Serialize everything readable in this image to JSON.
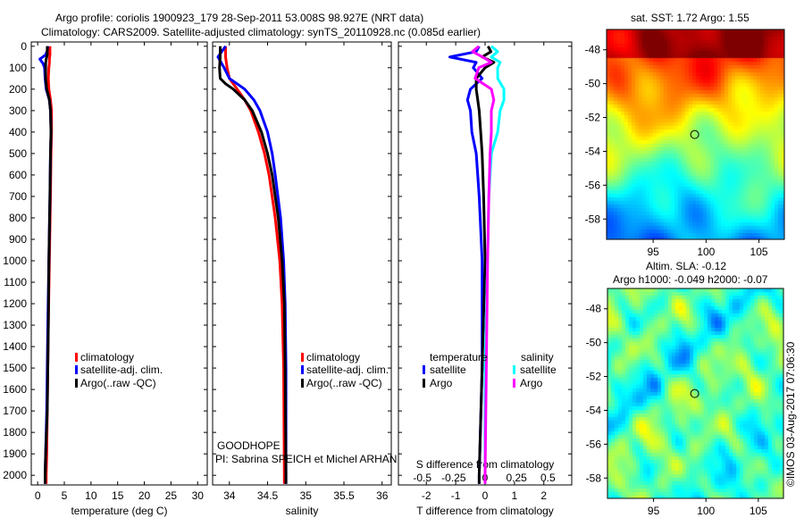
{
  "header": {
    "line1": "Argo profile: coriolis 1900923_179 28-Sep-2011 53.008S 98.927E (NRT data)",
    "line2": "Climatology: CARS2009. Satellite-adjusted climatology: synTS_20110928.nc (0.085d earlier)"
  },
  "colors": {
    "climatology": "#ff0000",
    "satellite": "#0000ff",
    "argo": "#000000",
    "s_satellite": "#00ffff",
    "s_argo": "#ff00ff"
  },
  "credits": {
    "project": "GOODHOPE",
    "pi": "PI: Sabrina SPEICH et Michel ARHAN",
    "stamp": "©IMOS 03-Aug-2017 07:06:30"
  },
  "chart_data": [
    {
      "type": "line",
      "id": "temperature",
      "xlabel": "temperature (deg C)",
      "ylabel": "depth",
      "xlim": [
        -1.2,
        31.8
      ],
      "ylim": [
        2045,
        -20
      ],
      "xticks": [
        0,
        5,
        10,
        15,
        20,
        25,
        30
      ],
      "yticks": [
        0,
        100,
        200,
        300,
        400,
        500,
        600,
        700,
        800,
        900,
        1000,
        1100,
        1200,
        1300,
        1400,
        1500,
        1600,
        1700,
        1800,
        1900,
        2000
      ],
      "depth": [
        0,
        20,
        40,
        60,
        80,
        100,
        150,
        200,
        250,
        300,
        400,
        500,
        700,
        1000,
        1300,
        1500,
        1700,
        1900,
        2000,
        2040
      ],
      "series": [
        {
          "name": "climatology",
          "color": "#ff0000",
          "values": [
            2.3,
            2.3,
            2.3,
            2.2,
            2.2,
            2.1,
            2.0,
            2.1,
            2.4,
            2.6,
            2.6,
            2.5,
            2.4,
            2.2,
            2.0,
            1.9,
            1.8,
            1.7,
            1.6,
            1.6
          ]
        },
        {
          "name": "satellite-adj. clim.",
          "color": "#0000ff",
          "values": [
            1.9,
            1.8,
            1.5,
            0.4,
            1.0,
            1.3,
            1.4,
            1.6,
            2.2,
            2.4,
            2.5,
            2.4,
            2.3,
            2.1,
            1.9,
            1.8,
            1.7,
            1.5,
            1.4,
            1.4
          ]
        },
        {
          "name": "Argo(..raw -QC)",
          "color": "#000000",
          "values": [
            1.8,
            1.8,
            1.8,
            1.6,
            1.5,
            1.5,
            1.5,
            1.7,
            2.2,
            2.4,
            2.5,
            2.4,
            2.3,
            2.1,
            2.0,
            1.9,
            1.8,
            1.5,
            1.4,
            1.4
          ]
        }
      ]
    },
    {
      "type": "line",
      "id": "salinity",
      "xlabel": "salinity",
      "ylabel": "depth",
      "xlim": [
        33.78,
        36.12
      ],
      "ylim": [
        2045,
        -20
      ],
      "xticks": [
        34,
        34.5,
        35,
        35.5,
        36
      ],
      "depth": [
        0,
        50,
        100,
        150,
        175,
        200,
        250,
        300,
        400,
        500,
        600,
        800,
        1000,
        1200,
        1500,
        2000,
        2040
      ],
      "series": [
        {
          "name": "climatology",
          "color": "#ff0000",
          "values": [
            33.95,
            33.95,
            33.97,
            34.0,
            34.05,
            34.1,
            34.2,
            34.28,
            34.38,
            34.46,
            34.52,
            34.6,
            34.66,
            34.69,
            34.71,
            34.72,
            34.72
          ]
        },
        {
          "name": "satellite-adj. clim.",
          "color": "#0000ff",
          "values": [
            33.95,
            33.85,
            33.93,
            34.0,
            34.1,
            34.2,
            34.32,
            34.4,
            34.5,
            34.56,
            34.6,
            34.67,
            34.71,
            34.73,
            34.74,
            34.74,
            34.74
          ]
        },
        {
          "name": "Argo(..raw -QC)",
          "color": "#000000",
          "values": [
            33.88,
            33.88,
            33.87,
            33.88,
            33.95,
            34.05,
            34.2,
            34.3,
            34.42,
            34.5,
            34.56,
            34.64,
            34.69,
            34.72,
            34.73,
            34.74,
            34.74
          ]
        }
      ]
    },
    {
      "type": "line",
      "id": "difference",
      "xlabel": "T difference from climatology",
      "x2label": "S difference from climatology",
      "xlim": [
        -2.95,
        2.95
      ],
      "x2lim": [
        -0.69,
        0.69
      ],
      "ylim": [
        2045,
        -20
      ],
      "xticks": [
        -2,
        -1,
        0,
        1,
        2
      ],
      "x2ticks": [
        -0.5,
        -0.25,
        0,
        0.25,
        0.5
      ],
      "x2ticklabels": [
        "-0.5",
        "-0.25",
        "0",
        "0.25",
        "0.5"
      ],
      "legend_headers": {
        "temperature": "temperature",
        "salinity": "salinity"
      },
      "depth": [
        0,
        25,
        50,
        75,
        100,
        150,
        200,
        250,
        300,
        400,
        500,
        700,
        1000,
        1500,
        2000,
        2040
      ],
      "series": [
        {
          "name": "satellite",
          "group": "temperature",
          "axis": "x",
          "color": "#0000ff",
          "values": [
            -0.2,
            -0.3,
            -1.2,
            -0.3,
            -0.4,
            -0.1,
            -0.5,
            -0.6,
            -0.5,
            -0.45,
            -0.3,
            -0.2,
            -0.1,
            -0.1,
            -0.2,
            -0.2
          ]
        },
        {
          "name": "Argo",
          "group": "temperature",
          "axis": "x",
          "color": "#000000",
          "values": [
            0.1,
            0.2,
            -0.1,
            0.3,
            0.0,
            -0.3,
            -0.3,
            -0.25,
            -0.2,
            -0.15,
            -0.1,
            -0.05,
            0.0,
            -0.1,
            -0.2,
            -0.2
          ]
        },
        {
          "name": "satellite",
          "group": "salinity",
          "axis": "x2",
          "color": "#00ffff",
          "values": [
            0.05,
            0.1,
            0.05,
            0.12,
            0.1,
            0.1,
            0.15,
            0.15,
            0.12,
            0.1,
            0.05,
            0.03,
            0.02,
            0.0,
            0.0,
            0.0
          ]
        },
        {
          "name": "Argo",
          "group": "salinity",
          "axis": "x2",
          "color": "#ff00ff",
          "values": [
            -0.05,
            -0.1,
            -0.02,
            0.05,
            -0.05,
            -0.08,
            0.05,
            0.07,
            0.05,
            0.05,
            0.04,
            0.03,
            0.02,
            0.01,
            0.0,
            0.0
          ]
        }
      ]
    },
    {
      "type": "heatmap",
      "id": "sst-map",
      "title": "sat. SST: 1.72 Argo: 1.55",
      "xlim": [
        90.6,
        107.4
      ],
      "ylim": [
        -59.2,
        -46.8
      ],
      "xticks": [
        95,
        100,
        105
      ],
      "yticks": [
        -48,
        -50,
        -52,
        -54,
        -56,
        -58
      ],
      "marker": {
        "lon": 98.927,
        "lat": -53.008
      }
    },
    {
      "type": "heatmap",
      "id": "sla-map",
      "title": "Altim. SLA: -0.12",
      "subtitle": "Argo h1000: -0.049 h2000: -0.07",
      "xlim": [
        90.6,
        107.4
      ],
      "ylim": [
        -59.2,
        -46.8
      ],
      "xticks": [
        95,
        100,
        105
      ],
      "yticks": [
        -48,
        -50,
        -52,
        -54,
        -56,
        -58
      ],
      "marker": {
        "lon": 98.927,
        "lat": -53.008
      }
    }
  ]
}
